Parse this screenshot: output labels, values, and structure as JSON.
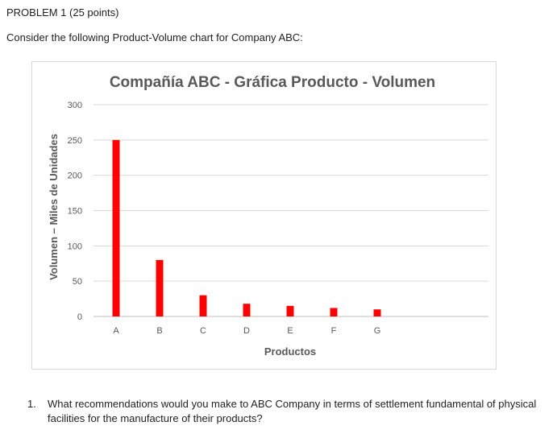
{
  "header": {
    "problem_title": "PROBLEM 1 (25 points)",
    "intro": "Consider the following Product-Volume chart for Company ABC:"
  },
  "chart_data": {
    "type": "bar",
    "title": "Compañía ABC - Gráfica Producto - Volumen",
    "xlabel": "Productos",
    "ylabel": "Volumen – Miles de Unidades",
    "categories": [
      "A",
      "B",
      "C",
      "D",
      "E",
      "F",
      "G"
    ],
    "values": [
      250,
      80,
      30,
      18,
      15,
      12,
      10
    ],
    "ylim": [
      0,
      300
    ],
    "yticks": [
      0,
      50,
      100,
      150,
      200,
      250,
      300
    ],
    "grid": true,
    "bar_color": "#ff0000"
  },
  "question": {
    "number": "1.",
    "text": "What recommendations would you make to ABC Company in terms of settlement fundamental of physical facilities for the manufacture of their products?"
  }
}
